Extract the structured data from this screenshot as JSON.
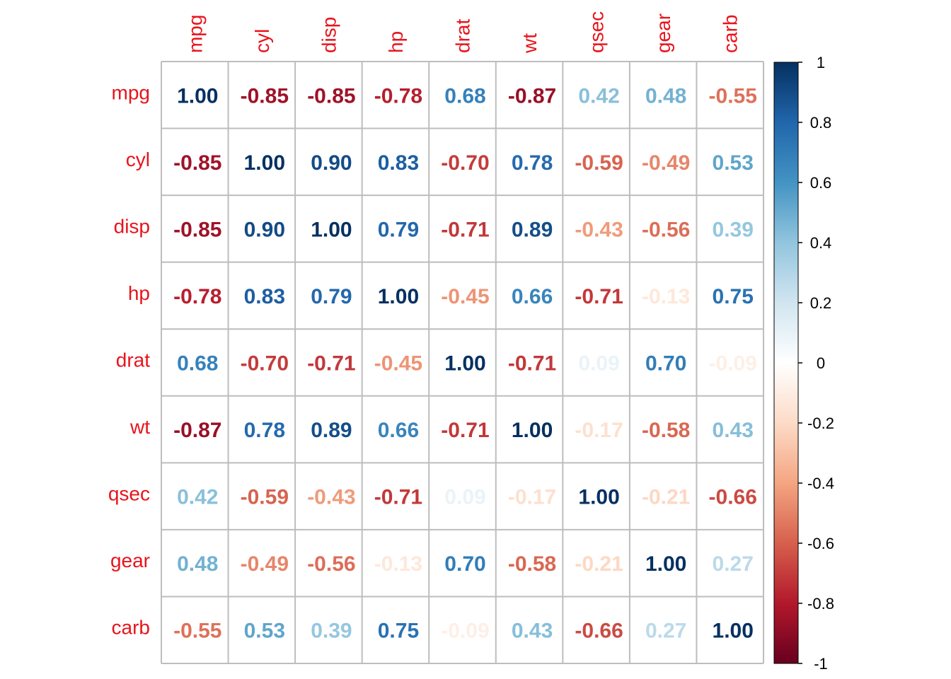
{
  "chart_data": {
    "type": "heatmap",
    "variables": [
      "mpg",
      "cyl",
      "disp",
      "hp",
      "drat",
      "wt",
      "qsec",
      "gear",
      "carb"
    ],
    "matrix": [
      [
        "1.00",
        "-0.85",
        "-0.85",
        "-0.78",
        "0.68",
        "-0.87",
        "0.42",
        "0.48",
        "-0.55"
      ],
      [
        "-0.85",
        "1.00",
        "0.90",
        "0.83",
        "-0.70",
        "0.78",
        "-0.59",
        "-0.49",
        "0.53"
      ],
      [
        "-0.85",
        "0.90",
        "1.00",
        "0.79",
        "-0.71",
        "0.89",
        "-0.43",
        "-0.56",
        "0.39"
      ],
      [
        "-0.78",
        "0.83",
        "0.79",
        "1.00",
        "-0.45",
        "0.66",
        "-0.71",
        "-0.13",
        "0.75"
      ],
      [
        "0.68",
        "-0.70",
        "-0.71",
        "-0.45",
        "1.00",
        "-0.71",
        "0.09",
        "0.70",
        "-0.09"
      ],
      [
        "-0.87",
        "0.78",
        "0.89",
        "0.66",
        "-0.71",
        "1.00",
        "-0.17",
        "-0.58",
        "0.43"
      ],
      [
        "0.42",
        "-0.59",
        "-0.43",
        "-0.71",
        "0.09",
        "-0.17",
        "1.00",
        "-0.21",
        "-0.66"
      ],
      [
        "0.48",
        "-0.49",
        "-0.56",
        "-0.13",
        "0.70",
        "-0.58",
        "-0.21",
        "1.00",
        "0.27"
      ],
      [
        "-0.55",
        "0.53",
        "0.39",
        "0.75",
        "-0.09",
        "0.43",
        "-0.66",
        "0.27",
        "1.00"
      ]
    ],
    "colorbar": {
      "range": [
        -1,
        1
      ],
      "ticks": [
        "1",
        "0.8",
        "0.6",
        "0.4",
        "0.2",
        "0",
        "-0.2",
        "-0.4",
        "-0.6",
        "-0.8",
        "-1"
      ]
    },
    "legend_position": "right",
    "grid": true
  },
  "colors": {
    "label": "#e8141c",
    "grid": "#bdbdbd",
    "scale": [
      "#67001F",
      "#B2182B",
      "#D6604D",
      "#F4A582",
      "#FDDBC7",
      "#FFFFFF",
      "#D1E5F0",
      "#92C5DE",
      "#4393C3",
      "#2166AC",
      "#053061"
    ]
  }
}
